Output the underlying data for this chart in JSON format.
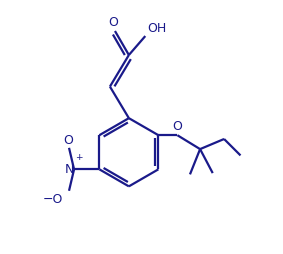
{
  "bg_color": "#ffffff",
  "line_color": "#1a1a8a",
  "line_width": 1.6,
  "figsize": [
    2.83,
    2.54
  ],
  "dpi": 100,
  "xlim": [
    0,
    10
  ],
  "ylim": [
    0,
    10
  ]
}
